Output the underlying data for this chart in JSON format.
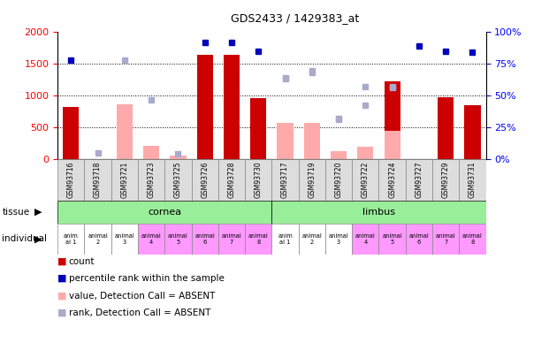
{
  "title": "GDS2433 / 1429383_at",
  "samples": [
    "GSM93716",
    "GSM93718",
    "GSM93721",
    "GSM93723",
    "GSM93725",
    "GSM93726",
    "GSM93728",
    "GSM93730",
    "GSM93717",
    "GSM93719",
    "GSM93720",
    "GSM93722",
    "GSM93724",
    "GSM93727",
    "GSM93729",
    "GSM93731"
  ],
  "count": [
    820,
    0,
    0,
    0,
    0,
    1650,
    1650,
    960,
    0,
    0,
    0,
    0,
    1230,
    0,
    970,
    850
  ],
  "percentile_rank": [
    78,
    5,
    78,
    47,
    4,
    92,
    92,
    85,
    64,
    70,
    32,
    57,
    57,
    89,
    85,
    84
  ],
  "absent_value": [
    0,
    0,
    870,
    215,
    60,
    0,
    0,
    0,
    575,
    575,
    130,
    195,
    455,
    0,
    0,
    0
  ],
  "absent_rank": [
    0,
    0,
    0,
    0,
    0,
    0,
    0,
    0,
    1270,
    1370,
    625,
    855,
    1125,
    0,
    0,
    0
  ],
  "detection_absent": [
    false,
    true,
    true,
    true,
    true,
    false,
    false,
    false,
    true,
    true,
    true,
    true,
    true,
    false,
    false,
    false
  ],
  "individual_colors": [
    "#ffffff",
    "#ffffff",
    "#ffffff",
    "#ff99ff",
    "#ff99ff",
    "#ff99ff",
    "#ff99ff",
    "#ff99ff",
    "#ffffff",
    "#ffffff",
    "#ffffff",
    "#ff99ff",
    "#ff99ff",
    "#ff99ff",
    "#ff99ff",
    "#ff99ff"
  ],
  "individual_labels": [
    "anim\nal 1",
    "animal\n2",
    "animal\n3",
    "animal\n4",
    "animal\n5",
    "animal\n6",
    "animal\n7",
    "animal\n8",
    "anim\nal 1",
    "animal\n2",
    "animal\n3",
    "animal\n4",
    "animal\n5",
    "animal\n6",
    "animal\n7",
    "animal\n8"
  ],
  "ylim_left": [
    0,
    2000
  ],
  "ylim_right": [
    0,
    100
  ],
  "yticks_left": [
    0,
    500,
    1000,
    1500,
    2000
  ],
  "yticks_right": [
    0,
    25,
    50,
    75,
    100
  ],
  "ytick_right_labels": [
    "0%",
    "25%",
    "50%",
    "75%",
    "100%"
  ],
  "bar_color_red": "#cc0000",
  "bar_color_pink": "#ffaaaa",
  "dot_color_blue": "#0000bb",
  "dot_color_lightblue": "#aaaacc",
  "tissue_green": "#99ee99",
  "tissue_label_cornea": "cornea",
  "tissue_label_limbus": "limbus",
  "bg_color": "#ffffff",
  "xticklabel_bg": "#dddddd",
  "legend_items": [
    {
      "color": "#cc0000",
      "label": "count"
    },
    {
      "color": "#0000bb",
      "label": "percentile rank within the sample"
    },
    {
      "color": "#ffaaaa",
      "label": "value, Detection Call = ABSENT"
    },
    {
      "color": "#aaaacc",
      "label": "rank, Detection Call = ABSENT"
    }
  ]
}
